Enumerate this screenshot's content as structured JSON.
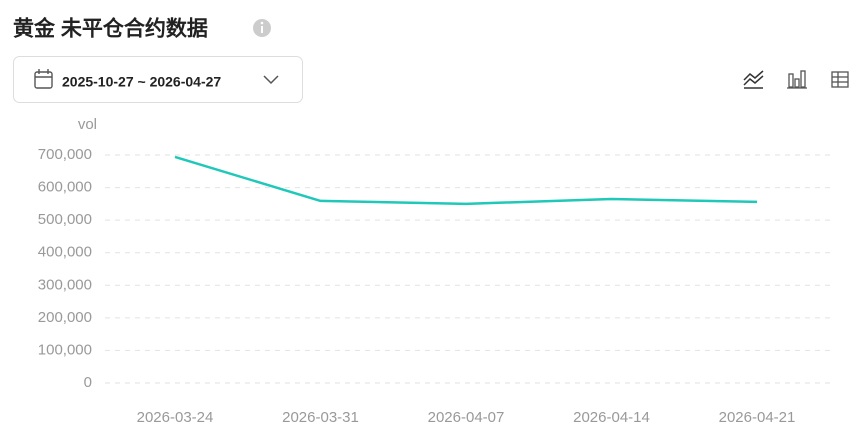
{
  "chart_data": {
    "type": "line",
    "title": "黄金 未平仓合约数据",
    "date_range": "2025-10-27 ~ 2026-04-27",
    "y_label": "vol",
    "categories": [
      "2026-03-24",
      "2026-03-31",
      "2026-04-07",
      "2026-04-14",
      "2026-04-21"
    ],
    "values": [
      694000,
      559000,
      550000,
      565000,
      556000
    ],
    "color": "#1fc8b8",
    "ylim": [
      0,
      700000
    ],
    "yticks": [
      0,
      {
        "value": 100000,
        "label": "100,000"
      },
      {
        "value": 200000,
        "label": "200,000"
      },
      {
        "value": 300000,
        "label": "300,000"
      },
      {
        "value": 400000,
        "label": "400,000"
      },
      {
        "value": 500000,
        "label": "500,000"
      },
      {
        "value": 600000,
        "label": "600,000"
      },
      {
        "value": 700000,
        "label": "700,000"
      }
    ],
    "grid": true
  }
}
